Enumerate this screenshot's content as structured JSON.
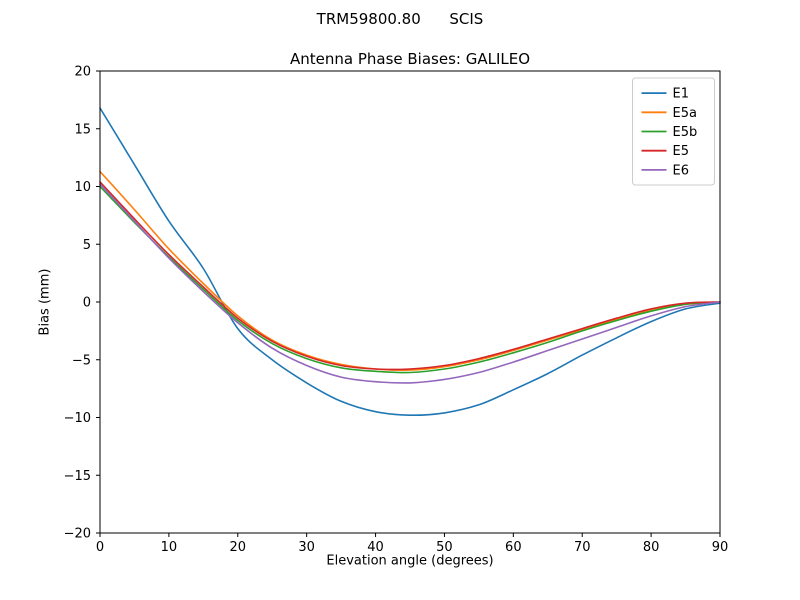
{
  "figure": {
    "suptitle": "TRM59800.80      SCIS",
    "background": "#ffffff"
  },
  "chart_data": {
    "type": "line",
    "title": "Antenna Phase Biases: GALILEO",
    "xlabel": "Elevation angle (degrees)",
    "ylabel": "Bias (mm)",
    "xlim": [
      0,
      90
    ],
    "ylim": [
      -20,
      20
    ],
    "xticks": [
      0,
      10,
      20,
      30,
      40,
      50,
      60,
      70,
      80,
      90
    ],
    "yticks": [
      -20,
      -15,
      -10,
      -5,
      0,
      5,
      10,
      15,
      20
    ],
    "grid": false,
    "legend_position": "upper right",
    "frame_color": "#000000",
    "legend_edge_color": "#cccccc",
    "x": [
      0,
      5,
      10,
      15,
      20,
      25,
      30,
      35,
      40,
      45,
      50,
      55,
      60,
      65,
      70,
      75,
      80,
      85,
      90
    ],
    "series": [
      {
        "name": "E1",
        "color": "#1f77b4",
        "values": [
          16.8,
          11.9,
          7.0,
          2.9,
          -2.3,
          -5.0,
          -7.0,
          -8.6,
          -9.5,
          -9.8,
          -9.6,
          -8.9,
          -7.6,
          -6.2,
          -4.6,
          -3.1,
          -1.7,
          -0.6,
          -0.1
        ]
      },
      {
        "name": "E5a",
        "color": "#ff7f0e",
        "values": [
          11.3,
          8.0,
          4.6,
          1.6,
          -1.2,
          -3.3,
          -4.6,
          -5.4,
          -5.8,
          -5.9,
          -5.6,
          -5.0,
          -4.2,
          -3.3,
          -2.4,
          -1.5,
          -0.7,
          -0.2,
          0.0
        ]
      },
      {
        "name": "E5b",
        "color": "#2ca02c",
        "values": [
          10.0,
          6.9,
          3.9,
          1.1,
          -1.6,
          -3.6,
          -4.9,
          -5.7,
          -6.0,
          -6.1,
          -5.8,
          -5.2,
          -4.4,
          -3.5,
          -2.5,
          -1.6,
          -0.8,
          -0.2,
          0.0
        ]
      },
      {
        "name": "E5",
        "color": "#d62728",
        "values": [
          10.4,
          7.2,
          4.1,
          1.3,
          -1.4,
          -3.4,
          -4.7,
          -5.5,
          -5.8,
          -5.8,
          -5.5,
          -4.9,
          -4.1,
          -3.2,
          -2.3,
          -1.4,
          -0.6,
          -0.1,
          0.0
        ]
      },
      {
        "name": "E6",
        "color": "#9467bd",
        "values": [
          10.2,
          7.0,
          3.8,
          0.9,
          -1.8,
          -4.0,
          -5.5,
          -6.5,
          -6.9,
          -7.0,
          -6.7,
          -6.1,
          -5.2,
          -4.2,
          -3.2,
          -2.2,
          -1.2,
          -0.4,
          0.0
        ]
      }
    ]
  }
}
